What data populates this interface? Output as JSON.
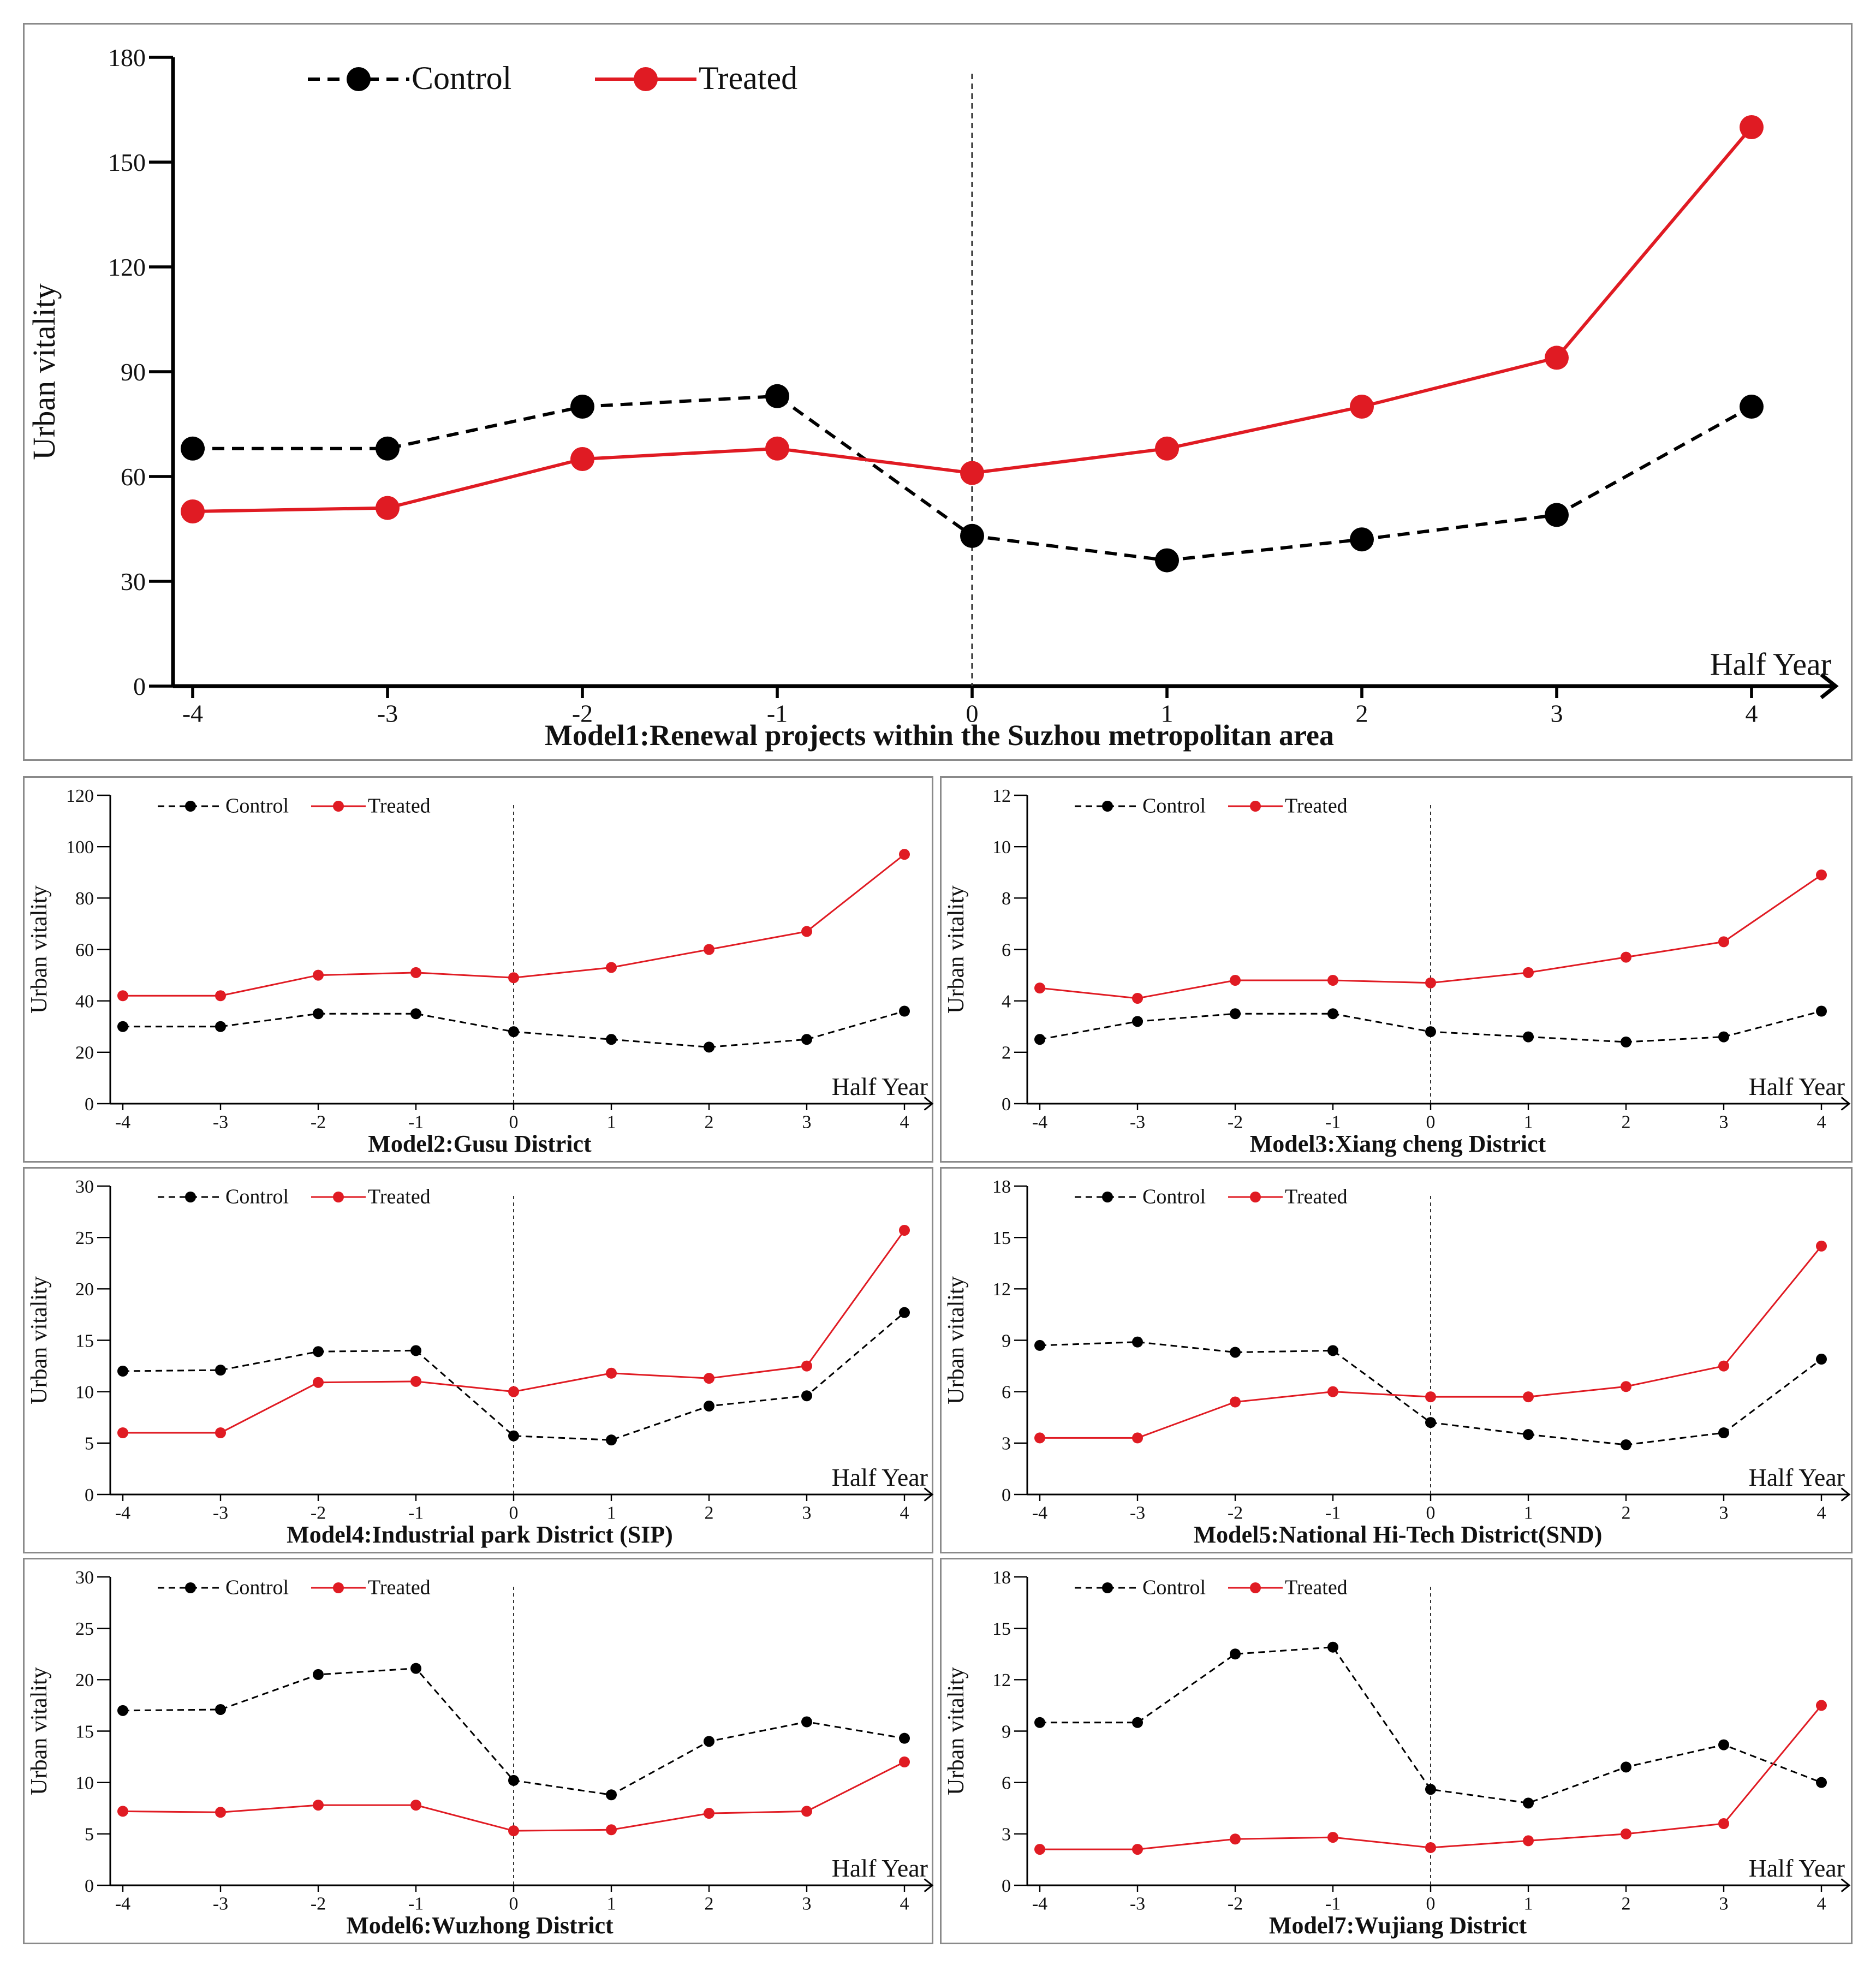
{
  "chart_data": [
    {
      "type": "line",
      "title": "Model1:Renewal projects within the Suzhou metropolitan area",
      "xlabel": "Half Year",
      "ylabel": "Urban vitality",
      "x": [
        -4,
        -3,
        -2,
        -1,
        0,
        1,
        2,
        3,
        4
      ],
      "xticks": [
        "-4",
        "-3",
        "-2",
        "-1",
        "0",
        "1",
        "2",
        "3",
        "4"
      ],
      "ylim": [
        0,
        180
      ],
      "yticks": [
        "0",
        "30",
        "60",
        "90",
        "120",
        "150",
        "180"
      ],
      "event_line_x": 0,
      "legend": [
        "Control",
        "Treated"
      ],
      "series": [
        {
          "name": "Control",
          "color": "#000000",
          "style": "dashed",
          "values": [
            68,
            68,
            80,
            83,
            43,
            36,
            42,
            49,
            80
          ]
        },
        {
          "name": "Treated",
          "color": "#e01b23",
          "style": "solid",
          "values": [
            50,
            51,
            65,
            68,
            61,
            68,
            80,
            94,
            160
          ]
        }
      ]
    },
    {
      "type": "line",
      "title": "Model2:Gusu District",
      "xlabel": "Half Year",
      "ylabel": "Urban vitality",
      "x": [
        -4,
        -3,
        -2,
        -1,
        0,
        1,
        2,
        3,
        4
      ],
      "xticks": [
        "-4",
        "-3",
        "-2",
        "-1",
        "0",
        "1",
        "2",
        "3",
        "4"
      ],
      "ylim": [
        0,
        120
      ],
      "yticks": [
        "0",
        "20",
        "40",
        "60",
        "80",
        "100",
        "120"
      ],
      "event_line_x": 0,
      "legend": [
        "Control",
        "Treated"
      ],
      "series": [
        {
          "name": "Control",
          "color": "#000000",
          "style": "dashed",
          "values": [
            30,
            30,
            35,
            35,
            28,
            25,
            22,
            25,
            36
          ]
        },
        {
          "name": "Treated",
          "color": "#e01b23",
          "style": "solid",
          "values": [
            42,
            42,
            50,
            51,
            49,
            53,
            60,
            67,
            97
          ]
        }
      ]
    },
    {
      "type": "line",
      "title": "Model3:Xiang cheng District",
      "xlabel": "Half Year",
      "ylabel": "Urban vitality",
      "x": [
        -4,
        -3,
        -2,
        -1,
        0,
        1,
        2,
        3,
        4
      ],
      "xticks": [
        "-4",
        "-3",
        "-2",
        "-1",
        "0",
        "1",
        "2",
        "3",
        "4"
      ],
      "ylim": [
        0,
        12
      ],
      "yticks": [
        "0",
        "2",
        "4",
        "6",
        "8",
        "10",
        "12"
      ],
      "event_line_x": 0,
      "legend": [
        "Control",
        "Treated"
      ],
      "series": [
        {
          "name": "Control",
          "color": "#000000",
          "style": "dashed",
          "values": [
            2.5,
            3.2,
            3.5,
            3.5,
            2.8,
            2.6,
            2.4,
            2.6,
            3.6
          ]
        },
        {
          "name": "Treated",
          "color": "#e01b23",
          "style": "solid",
          "values": [
            4.5,
            4.1,
            4.8,
            4.8,
            4.7,
            5.1,
            5.7,
            6.3,
            8.9
          ]
        }
      ]
    },
    {
      "type": "line",
      "title": "Model4:Industrial park District (SIP)",
      "xlabel": "Half Year",
      "ylabel": "Urban vitality",
      "x": [
        -4,
        -3,
        -2,
        -1,
        0,
        1,
        2,
        3,
        4
      ],
      "xticks": [
        "-4",
        "-3",
        "-2",
        "-1",
        "0",
        "1",
        "2",
        "3",
        "4"
      ],
      "ylim": [
        0,
        30
      ],
      "yticks": [
        "0",
        "5",
        "10",
        "15",
        "20",
        "25",
        "30"
      ],
      "event_line_x": 0,
      "legend": [
        "Control",
        "Treated"
      ],
      "series": [
        {
          "name": "Control",
          "color": "#000000",
          "style": "dashed",
          "values": [
            12,
            12.1,
            13.9,
            14,
            5.7,
            5.3,
            8.6,
            9.6,
            17.7
          ]
        },
        {
          "name": "Treated",
          "color": "#e01b23",
          "style": "solid",
          "values": [
            6,
            6,
            10.9,
            11,
            10,
            11.8,
            11.3,
            12.5,
            25.7
          ]
        }
      ]
    },
    {
      "type": "line",
      "title": "Model5:National Hi-Tech District(SND)",
      "xlabel": "Half Year",
      "ylabel": "Urban vitality",
      "x": [
        -4,
        -3,
        -2,
        -1,
        0,
        1,
        2,
        3,
        4
      ],
      "xticks": [
        "-4",
        "-3",
        "-2",
        "-1",
        "0",
        "1",
        "2",
        "3",
        "4"
      ],
      "ylim": [
        0,
        18
      ],
      "yticks": [
        "0",
        "3",
        "6",
        "9",
        "12",
        "15",
        "18"
      ],
      "event_line_x": 0,
      "legend": [
        "Control",
        "Treated"
      ],
      "series": [
        {
          "name": "Control",
          "color": "#000000",
          "style": "dashed",
          "values": [
            8.7,
            8.9,
            8.3,
            8.4,
            4.2,
            3.5,
            2.9,
            3.6,
            7.9
          ]
        },
        {
          "name": "Treated",
          "color": "#e01b23",
          "style": "solid",
          "values": [
            3.3,
            3.3,
            5.4,
            6,
            5.7,
            5.7,
            6.3,
            7.5,
            14.5
          ]
        }
      ]
    },
    {
      "type": "line",
      "title": "Model6:Wuzhong District",
      "xlabel": "Half Year",
      "ylabel": "Urban vitality",
      "x": [
        -4,
        -3,
        -2,
        -1,
        0,
        1,
        2,
        3,
        4
      ],
      "xticks": [
        "-4",
        "-3",
        "-2",
        "-1",
        "0",
        "1",
        "2",
        "3",
        "4"
      ],
      "ylim": [
        0,
        30
      ],
      "yticks": [
        "0",
        "5",
        "10",
        "15",
        "20",
        "25",
        "30"
      ],
      "event_line_x": 0,
      "legend": [
        "Control",
        "Treated"
      ],
      "series": [
        {
          "name": "Control",
          "color": "#000000",
          "style": "dashed",
          "values": [
            17,
            17.1,
            20.5,
            21.1,
            10.2,
            8.8,
            14,
            15.9,
            14.3
          ]
        },
        {
          "name": "Treated",
          "color": "#e01b23",
          "style": "solid",
          "values": [
            7.2,
            7.1,
            7.8,
            7.8,
            5.3,
            5.4,
            7,
            7.2,
            12
          ]
        }
      ]
    },
    {
      "type": "line",
      "title": "Model7:Wujiang District",
      "xlabel": "Half Year",
      "ylabel": "Urban vitality",
      "x": [
        -4,
        -3,
        -2,
        -1,
        0,
        1,
        2,
        3,
        4
      ],
      "xticks": [
        "-4",
        "-3",
        "-2",
        "-1",
        "0",
        "1",
        "2",
        "3",
        "4"
      ],
      "ylim": [
        0,
        18
      ],
      "yticks": [
        "0",
        "3",
        "6",
        "9",
        "12",
        "15",
        "18"
      ],
      "event_line_x": 0,
      "legend": [
        "Control",
        "Treated"
      ],
      "series": [
        {
          "name": "Control",
          "color": "#000000",
          "style": "dashed",
          "values": [
            9.5,
            9.5,
            13.5,
            13.9,
            5.6,
            4.8,
            6.9,
            8.2,
            6
          ]
        },
        {
          "name": "Treated",
          "color": "#e01b23",
          "style": "solid",
          "values": [
            2.1,
            2.1,
            2.7,
            2.8,
            2.2,
            2.6,
            3,
            3.6,
            10.5
          ]
        }
      ]
    }
  ]
}
